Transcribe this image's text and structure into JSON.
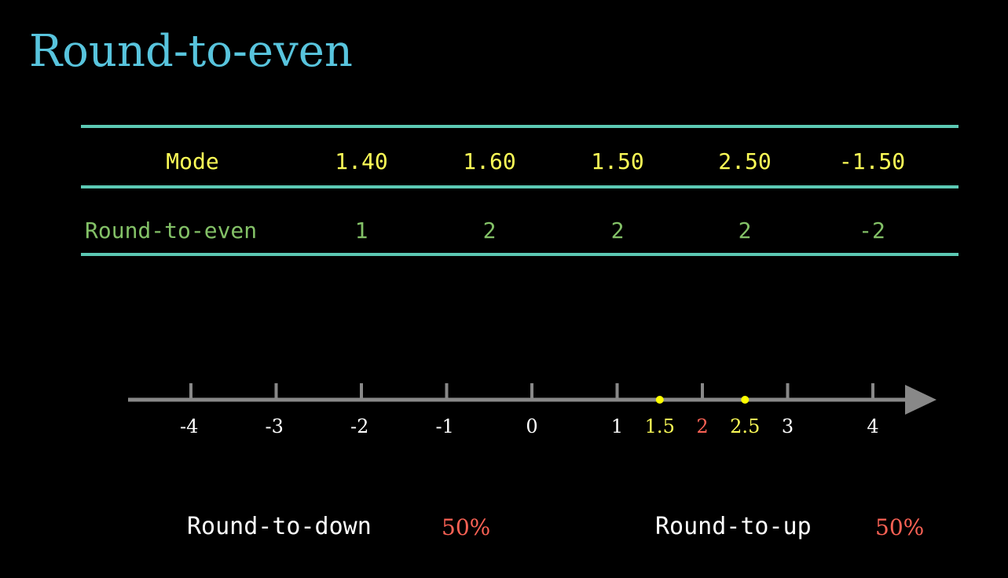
{
  "title": "Round-to-even",
  "table": {
    "header_label": "Mode",
    "columns": [
      "1.40",
      "1.60",
      "1.50",
      "2.50",
      "-1.50"
    ],
    "row_label": "Round-to-even",
    "row_values": [
      "1",
      "2",
      "2",
      "2",
      "-2"
    ]
  },
  "number_line": {
    "ticks": [
      -4,
      -3,
      -2,
      -1,
      0,
      1,
      2,
      3,
      4
    ],
    "tick_labels": [
      "-4",
      "-3",
      "-2",
      "-1",
      "0",
      "1",
      "2",
      "3",
      "4"
    ],
    "highlight_points": [
      1.5,
      2.5
    ],
    "highlight_labels": [
      "1.5",
      "2.5"
    ],
    "highlight_label_color": "#ffff57",
    "emphasized_tick": "2",
    "emphasized_tick_color": "#fc6255"
  },
  "bottom": {
    "down_label": "Round-to-down",
    "down_pct": "50%",
    "up_label": "Round-to-up",
    "up_pct": "50%"
  },
  "colors": {
    "title": "#58c4dd",
    "rules": "#5cc9b4",
    "header_text": "#ffff57",
    "row_text": "#83c167",
    "axis": "#888888",
    "point": "#ffff00",
    "percent": "#fc6255"
  }
}
